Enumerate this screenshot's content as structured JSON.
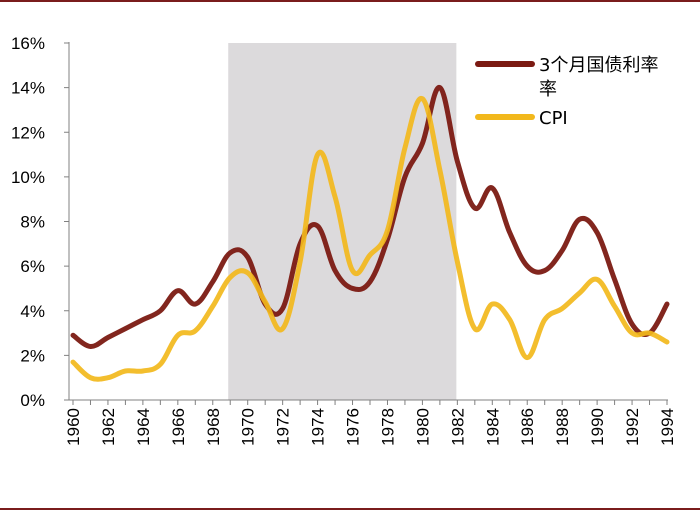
{
  "chart_data": {
    "type": "line",
    "xlim": [
      1960,
      1994
    ],
    "ylim": [
      0,
      16
    ],
    "yticks": [
      "0%",
      "2%",
      "4%",
      "6%",
      "8%",
      "10%",
      "12%",
      "14%",
      "16%"
    ],
    "yticks_values": [
      0,
      2,
      4,
      6,
      8,
      10,
      12,
      14,
      16
    ],
    "xticks": [
      "1960",
      "1962",
      "1964",
      "1966",
      "1968",
      "1970",
      "1972",
      "1974",
      "1976",
      "1978",
      "1980",
      "1982",
      "1984",
      "1986",
      "1988",
      "1990",
      "1992",
      "1994"
    ],
    "xticks_values": [
      1960,
      1962,
      1964,
      1966,
      1968,
      1970,
      1972,
      1974,
      1976,
      1978,
      1980,
      1982,
      1984,
      1986,
      1988,
      1990,
      1992,
      1994
    ],
    "shaded_region": [
      1969,
      1982
    ],
    "grid": false,
    "legend_position": "top-right",
    "colors": {
      "tbill": "#7b1a12",
      "cpi": "#f2b81c",
      "shade": "#dcdadc",
      "axis": "#808080"
    },
    "series": [
      {
        "name": "3个月国债利率",
        "legend_lines": [
          "3个月国债利率",
          "率"
        ],
        "color": "#7b1a12",
        "x": [
          1960,
          1961,
          1962,
          1963,
          1964,
          1965,
          1966,
          1967,
          1968,
          1969,
          1970,
          1971,
          1972,
          1973,
          1974,
          1975,
          1976,
          1977,
          1978,
          1979,
          1980,
          1981,
          1982,
          1983,
          1984,
          1985,
          1986,
          1987,
          1988,
          1989,
          1990,
          1991,
          1992,
          1993,
          1994
        ],
        "values": [
          2.9,
          2.4,
          2.8,
          3.2,
          3.6,
          4.0,
          4.9,
          4.3,
          5.3,
          6.6,
          6.4,
          4.3,
          4.1,
          7.0,
          7.8,
          5.8,
          5.0,
          5.3,
          7.2,
          10.0,
          11.5,
          14.0,
          10.7,
          8.6,
          9.5,
          7.5,
          6.0,
          5.8,
          6.7,
          8.1,
          7.5,
          5.4,
          3.4,
          3.0,
          4.3
        ]
      },
      {
        "name": "CPI",
        "legend_lines": [
          "CPI"
        ],
        "color": "#f2b81c",
        "x": [
          1960,
          1961,
          1962,
          1963,
          1964,
          1965,
          1966,
          1967,
          1968,
          1969,
          1970,
          1971,
          1972,
          1973,
          1974,
          1975,
          1976,
          1977,
          1978,
          1979,
          1980,
          1981,
          1982,
          1983,
          1984,
          1985,
          1986,
          1987,
          1988,
          1989,
          1990,
          1991,
          1992,
          1993,
          1994
        ],
        "values": [
          1.7,
          1.0,
          1.0,
          1.3,
          1.3,
          1.6,
          2.9,
          3.1,
          4.2,
          5.5,
          5.7,
          4.4,
          3.2,
          6.2,
          11.0,
          9.1,
          5.8,
          6.5,
          7.6,
          11.3,
          13.5,
          10.3,
          6.2,
          3.2,
          4.3,
          3.6,
          1.9,
          3.6,
          4.1,
          4.8,
          5.4,
          4.2,
          3.0,
          3.0,
          2.6
        ]
      }
    ]
  }
}
